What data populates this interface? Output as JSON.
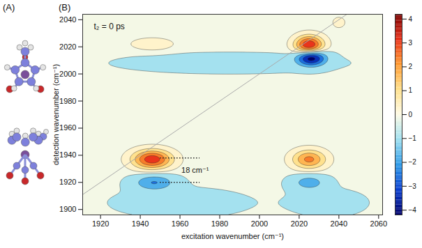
{
  "panel_a": {
    "label": "(A)"
  },
  "chart_data": {
    "type": "contour",
    "panel_label": "(B)",
    "x_label": "excitation wavenumber (cm⁻¹)",
    "y_label": "detection wavenumber (cm⁻¹)",
    "xlim": [
      1911,
      2062
    ],
    "ylim": [
      1896,
      2044
    ],
    "xticks": [
      1920,
      1940,
      1960,
      1980,
      2000,
      2020,
      2040,
      2060
    ],
    "yticks": [
      1900,
      1920,
      1940,
      1960,
      1980,
      2000,
      2020,
      2040
    ],
    "peaks": [
      {
        "x": 1946,
        "y": 1937,
        "amplitude": 3.6,
        "x_width": 7,
        "y_width": 5
      },
      {
        "x": 1947,
        "y": 1920,
        "amplitude": -1.8,
        "x_width": 7,
        "y_width": 4
      },
      {
        "x": 2025,
        "y": 1937,
        "amplitude": 2.6,
        "x_width": 6,
        "y_width": 5
      },
      {
        "x": 2025,
        "y": 1920,
        "amplitude": -1.4,
        "x_width": 6,
        "y_width": 4
      },
      {
        "x": 2025,
        "y": 2021,
        "amplitude": 4.0,
        "x_width": 5,
        "y_width": 5
      },
      {
        "x": 2026,
        "y": 2012,
        "amplitude": -4.1,
        "x_width": 5,
        "y_width": 4
      },
      {
        "x": 1946,
        "y": 2022,
        "amplitude": 1.0,
        "x_width": 7,
        "y_width": 3
      },
      {
        "x": 1985,
        "y": 2008,
        "amplitude": -0.3,
        "x_width": 45,
        "y_width": 6
      },
      {
        "x": 1960,
        "y": 1905,
        "amplitude": -0.35,
        "x_width": 25,
        "y_width": 8
      },
      {
        "x": 2035,
        "y": 1905,
        "amplitude": -0.3,
        "x_width": 15,
        "y_width": 8
      },
      {
        "x": 2040,
        "y": 2038,
        "amplitude": 0.4,
        "x_width": 4,
        "y_width": 5
      }
    ],
    "contour_levels": [
      -4.2,
      -3.4,
      -2.6,
      -1.8,
      -1.0,
      -0.12,
      0.3,
      1.0,
      1.7,
      2.4,
      3.1,
      3.8
    ],
    "colorbar": {
      "range": [
        -4.2,
        4.2
      ],
      "ticks": [
        -4,
        -3,
        -2,
        -1,
        0,
        1,
        2,
        3,
        4
      ]
    },
    "annotations": [
      {
        "text": "t₂ = 0 ps"
      },
      {
        "text": "18 cm⁻¹",
        "x": [
          1950,
          1970
        ],
        "y": [
          1938,
          1920
        ]
      }
    ]
  }
}
